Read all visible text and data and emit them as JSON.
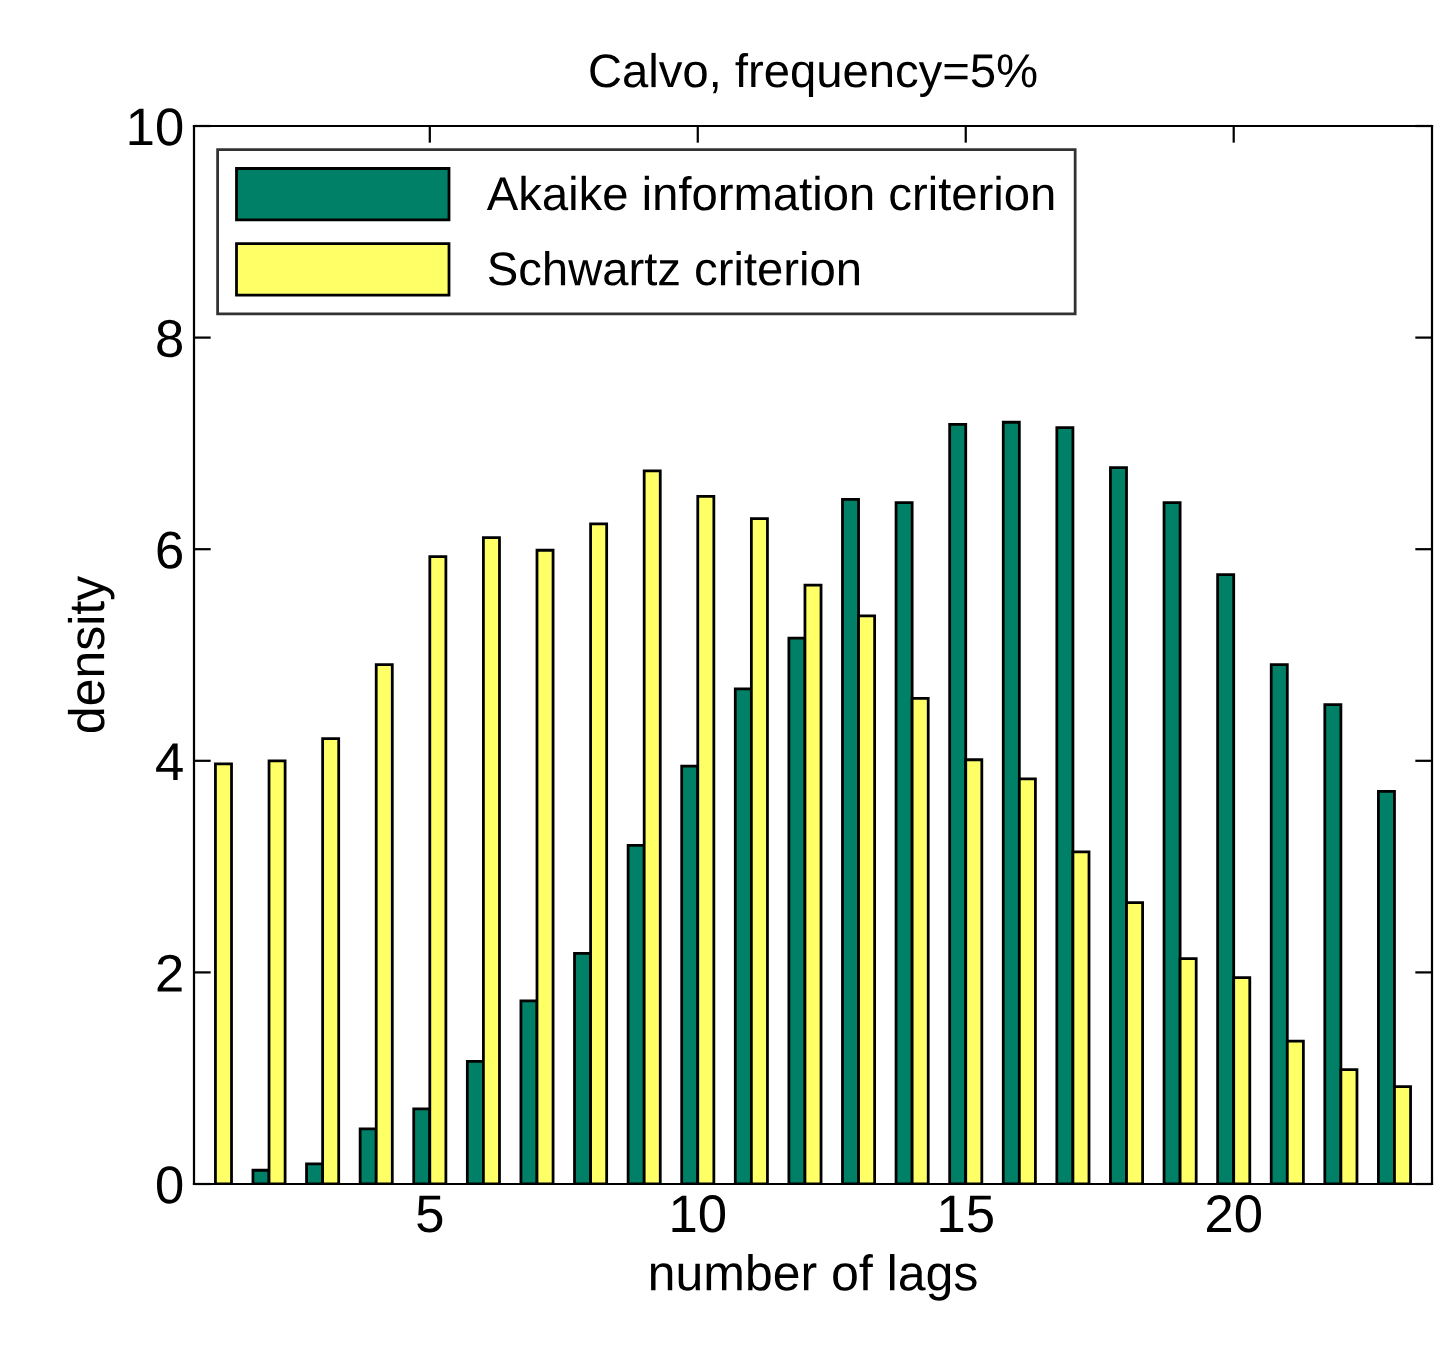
{
  "chart_data": {
    "type": "bar",
    "title": "Calvo, frequency=5%",
    "xlabel": "number of lags",
    "ylabel": "density",
    "x": [
      1,
      2,
      3,
      4,
      5,
      6,
      7,
      8,
      9,
      10,
      11,
      12,
      13,
      14,
      15,
      16,
      17,
      18,
      19,
      20,
      21,
      22,
      23
    ],
    "series": [
      {
        "name": "Akaike information criterion",
        "color": "#008066",
        "values": [
          null,
          0.13,
          0.19,
          0.52,
          0.71,
          1.16,
          1.73,
          2.18,
          3.2,
          3.95,
          4.68,
          5.16,
          6.47,
          6.44,
          7.18,
          7.2,
          7.15,
          6.77,
          6.44,
          5.76,
          4.91,
          4.53,
          3.71
        ]
      },
      {
        "name": "Schwartz criterion",
        "color": "#ffff66",
        "values": [
          3.97,
          4.0,
          4.21,
          4.91,
          5.93,
          6.11,
          5.99,
          6.24,
          6.74,
          6.5,
          6.29,
          5.66,
          5.37,
          4.59,
          4.01,
          3.83,
          3.14,
          2.66,
          2.13,
          1.95,
          1.35,
          1.08,
          0.92
        ]
      }
    ],
    "xlim": [
      0.6,
      23.7
    ],
    "xticks": [
      5,
      10,
      15,
      20
    ],
    "ylim": [
      0,
      10
    ],
    "yticks": [
      0,
      2,
      4,
      6,
      8,
      10
    ],
    "grid": false,
    "legend": "top left"
  }
}
